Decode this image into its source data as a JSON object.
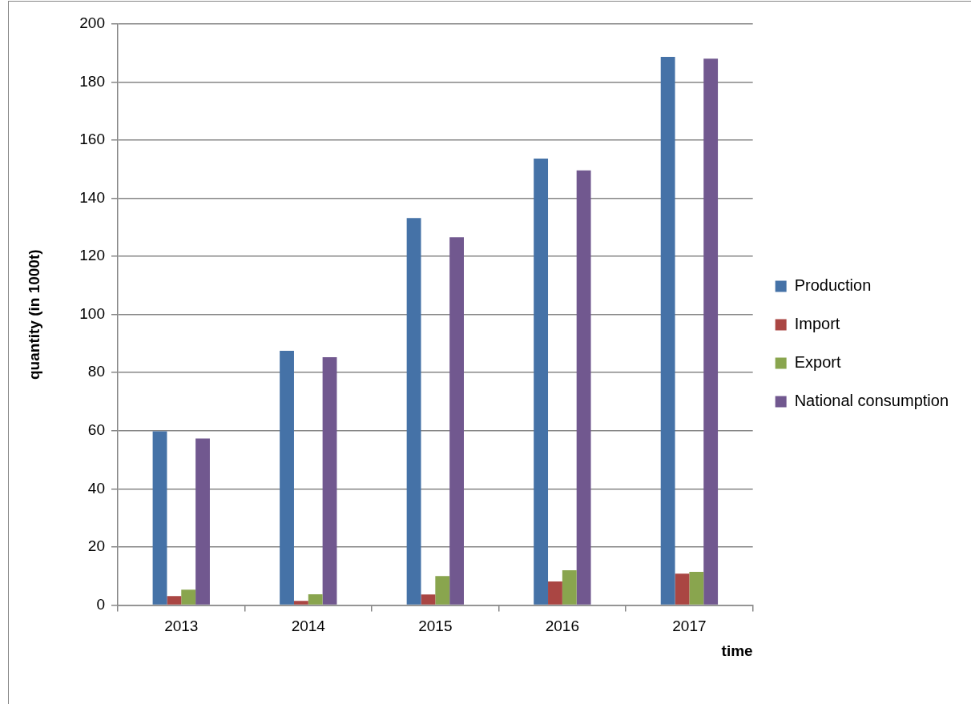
{
  "chart_data": {
    "type": "bar",
    "xlabel": "time",
    "ylabel": "quantity (in 1000t)",
    "categories": [
      "2013",
      "2014",
      "2015",
      "2016",
      "2017"
    ],
    "series": [
      {
        "name": "Production",
        "color": "#4572a7",
        "values": [
          59.8,
          87.5,
          133.2,
          153.7,
          188.7
        ]
      },
      {
        "name": "Import",
        "color": "#aa4643",
        "values": [
          3.1,
          1.4,
          3.6,
          8.1,
          10.8
        ]
      },
      {
        "name": "Export",
        "color": "#89a54e",
        "values": [
          5.3,
          3.7,
          10.0,
          12.0,
          11.4
        ]
      },
      {
        "name": "National consumption",
        "color": "#71588f",
        "values": [
          57.3,
          85.3,
          126.6,
          149.6,
          188.1
        ]
      }
    ],
    "ylim": [
      0,
      200
    ],
    "yticks": [
      0,
      20,
      40,
      60,
      80,
      100,
      120,
      140,
      160,
      180,
      200
    ],
    "grid": "y",
    "legend": "right"
  }
}
